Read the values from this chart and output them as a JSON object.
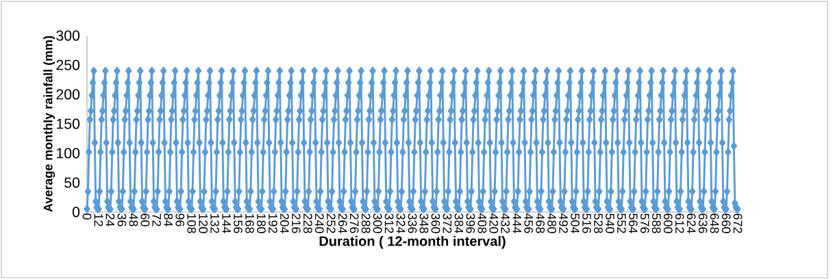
{
  "chart_data": {
    "type": "line",
    "xlabel": "Duration ( 12-month interval)",
    "ylabel": "Average monthly rainfall (mm)",
    "color": "#5b9bd5",
    "marker": "diamond",
    "line_style": "solid",
    "xlim": [
      0,
      672
    ],
    "ylim": [
      0,
      300
    ],
    "yticks": [
      0,
      50,
      100,
      150,
      200,
      250,
      300
    ],
    "xticks": [
      0,
      12,
      24,
      36,
      48,
      60,
      72,
      84,
      96,
      108,
      120,
      132,
      144,
      156,
      168,
      180,
      192,
      204,
      216,
      228,
      240,
      252,
      264,
      276,
      288,
      300,
      312,
      324,
      336,
      348,
      360,
      372,
      384,
      396,
      408,
      420,
      432,
      444,
      456,
      468,
      480,
      492,
      504,
      516,
      528,
      540,
      552,
      564,
      576,
      588,
      600,
      612,
      624,
      636,
      648,
      660,
      672
    ],
    "x": [
      0,
      1,
      2,
      3,
      4,
      5,
      6,
      7,
      8,
      9,
      10,
      11,
      12,
      13,
      14,
      15,
      16,
      17,
      18,
      19,
      20,
      21,
      22,
      23,
      24,
      25,
      26,
      27,
      28,
      29,
      30,
      31,
      32,
      33,
      34,
      35,
      36,
      37,
      38,
      39,
      40,
      41,
      42,
      43,
      44,
      45,
      46,
      47,
      48,
      49,
      50,
      51,
      52,
      53,
      54,
      55,
      56,
      57,
      58,
      59,
      60,
      61,
      62,
      63,
      64,
      65,
      66,
      67,
      68,
      69,
      70,
      71,
      72,
      73,
      74,
      75,
      76,
      77,
      78,
      79,
      80,
      81,
      82,
      83,
      84,
      85,
      86,
      87,
      88,
      89,
      90,
      91,
      92,
      93,
      94,
      95,
      96,
      97,
      98,
      99,
      100,
      101,
      102,
      103,
      104,
      105,
      106,
      107,
      108,
      109,
      110,
      111,
      112,
      113,
      114,
      115,
      116,
      117,
      118,
      119,
      120,
      121,
      122,
      123,
      124,
      125,
      126,
      127,
      128,
      129,
      130,
      131,
      132,
      133,
      134,
      135,
      136,
      137,
      138,
      139,
      140,
      141,
      142,
      143,
      144,
      145,
      146,
      147,
      148,
      149,
      150,
      151,
      152,
      153,
      154,
      155,
      156,
      157,
      158,
      159,
      160,
      161,
      162,
      163,
      164,
      165,
      166,
      167,
      168,
      169,
      170,
      171,
      172,
      173,
      174,
      175,
      176,
      177,
      178,
      179,
      180,
      181,
      182,
      183,
      184,
      185,
      186,
      187,
      188,
      189,
      190,
      191,
      192,
      193,
      194,
      195,
      196,
      197,
      198,
      199,
      200,
      201,
      202,
      203,
      204,
      205,
      206,
      207,
      208,
      209,
      210,
      211,
      212,
      213,
      214,
      215,
      216,
      217,
      218,
      219,
      220,
      221,
      222,
      223,
      224,
      225,
      226,
      227,
      228,
      229,
      230,
      231,
      232,
      233,
      234,
      235,
      236,
      237,
      238,
      239,
      240,
      241,
      242,
      243,
      244,
      245,
      246,
      247,
      248,
      249,
      250,
      251,
      252,
      253,
      254,
      255,
      256,
      257,
      258,
      259,
      260,
      261,
      262,
      263,
      264,
      265,
      266,
      267,
      268,
      269,
      270,
      271,
      272,
      273,
      274,
      275,
      276,
      277,
      278,
      279,
      280,
      281,
      282,
      283,
      284,
      285,
      286,
      287,
      288,
      289,
      290,
      291,
      292,
      293,
      294,
      295,
      296,
      297,
      298,
      299,
      300,
      301,
      302,
      303,
      304,
      305,
      306,
      307,
      308,
      309,
      310,
      311,
      312,
      313,
      314,
      315,
      316,
      317,
      318,
      319,
      320,
      321,
      322,
      323,
      324,
      325,
      326,
      327,
      328,
      329,
      330,
      331,
      332,
      333,
      334,
      335,
      336,
      337,
      338,
      339,
      340,
      341,
      342,
      343,
      344,
      345,
      346,
      347,
      348,
      349,
      350,
      351,
      352,
      353,
      354,
      355,
      356,
      357,
      358,
      359,
      360,
      361,
      362,
      363,
      364,
      365,
      366,
      367,
      368,
      369,
      370,
      371,
      372,
      373,
      374,
      375,
      376,
      377,
      378,
      379,
      380,
      381,
      382,
      383,
      384,
      385,
      386,
      387,
      388,
      389,
      390,
      391,
      392,
      393,
      394,
      395,
      396,
      397,
      398,
      399,
      400,
      401,
      402,
      403,
      404,
      405,
      406,
      407,
      408,
      409,
      410,
      411,
      412,
      413,
      414,
      415,
      416,
      417,
      418,
      419,
      420,
      421,
      422,
      423,
      424,
      425,
      426,
      427,
      428,
      429,
      430,
      431,
      432,
      433,
      434,
      435,
      436,
      437,
      438,
      439,
      440,
      441,
      442,
      443,
      444,
      445,
      446,
      447,
      448,
      449,
      450,
      451,
      452,
      453,
      454,
      455,
      456,
      457,
      458,
      459,
      460,
      461,
      462,
      463,
      464,
      465,
      466,
      467,
      468,
      469,
      470,
      471,
      472,
      473,
      474,
      475,
      476,
      477,
      478,
      479,
      480,
      481,
      482,
      483,
      484,
      485,
      486,
      487,
      488,
      489,
      490,
      491,
      492,
      493,
      494,
      495,
      496,
      497,
      498,
      499,
      500,
      501,
      502,
      503,
      504,
      505,
      506,
      507,
      508,
      509,
      510,
      511,
      512,
      513,
      514,
      515,
      516,
      517,
      518,
      519,
      520,
      521,
      522,
      523,
      524,
      525,
      526,
      527,
      528,
      529,
      530,
      531,
      532,
      533,
      534,
      535,
      536,
      537,
      538,
      539,
      540,
      541,
      542,
      543,
      544,
      545,
      546,
      547,
      548,
      549,
      550,
      551,
      552,
      553,
      554,
      555,
      556,
      557,
      558,
      559,
      560,
      561,
      562,
      563,
      564,
      565,
      566,
      567,
      568,
      569,
      570,
      571,
      572,
      573,
      574,
      575,
      576,
      577,
      578,
      579,
      580,
      581,
      582,
      583,
      584,
      585,
      586,
      587,
      588,
      589,
      590,
      591,
      592,
      593,
      594,
      595,
      596,
      597,
      598,
      599,
      600,
      601,
      602,
      603,
      604,
      605,
      606,
      607,
      608,
      609,
      610,
      611,
      612,
      613,
      614,
      615,
      616,
      617,
      618,
      619,
      620,
      621,
      622,
      623,
      624,
      625,
      626,
      627,
      628,
      629,
      630,
      631,
      632,
      633,
      634,
      635,
      636,
      637,
      638,
      639,
      640,
      641,
      642,
      643,
      644,
      645,
      646,
      647,
      648,
      649,
      650,
      651,
      652,
      653,
      654,
      655,
      656,
      657,
      658,
      659,
      660,
      661,
      662,
      663,
      664,
      665,
      666,
      667,
      668,
      669,
      670,
      671,
      672
    ],
    "values": [
      5,
      35,
      102,
      157,
      172,
      198,
      220,
      240,
      118,
      18,
      8,
      5,
      5,
      35,
      102,
      157,
      172,
      198,
      220,
      240,
      118,
      18,
      8,
      5,
      5,
      35,
      102,
      157,
      172,
      198,
      220,
      240,
      118,
      18,
      8,
      5,
      5,
      35,
      102,
      157,
      172,
      198,
      220,
      240,
      118,
      18,
      8,
      5,
      5,
      35,
      102,
      157,
      172,
      198,
      220,
      240,
      118,
      18,
      8,
      5,
      5,
      35,
      102,
      157,
      172,
      198,
      220,
      240,
      118,
      18,
      8,
      5,
      5,
      35,
      102,
      157,
      172,
      198,
      220,
      240,
      118,
      18,
      8,
      5,
      5,
      35,
      102,
      157,
      172,
      198,
      220,
      240,
      118,
      18,
      8,
      5,
      5,
      35,
      102,
      157,
      172,
      198,
      220,
      240,
      118,
      18,
      8,
      5,
      5,
      35,
      102,
      157,
      172,
      198,
      220,
      240,
      118,
      18,
      8,
      5,
      5,
      35,
      102,
      157,
      172,
      198,
      220,
      240,
      118,
      18,
      8,
      5,
      5,
      35,
      102,
      157,
      172,
      198,
      220,
      240,
      118,
      18,
      8,
      5,
      5,
      35,
      102,
      157,
      172,
      198,
      220,
      240,
      118,
      18,
      8,
      5,
      5,
      35,
      102,
      157,
      172,
      198,
      220,
      240,
      118,
      18,
      8,
      5,
      5,
      35,
      102,
      157,
      172,
      198,
      220,
      240,
      118,
      18,
      8,
      5,
      5,
      35,
      102,
      157,
      172,
      198,
      220,
      240,
      118,
      18,
      8,
      5,
      5,
      35,
      102,
      157,
      172,
      198,
      220,
      240,
      118,
      18,
      8,
      5,
      5,
      35,
      102,
      157,
      172,
      198,
      220,
      240,
      118,
      18,
      8,
      5,
      5,
      35,
      102,
      157,
      172,
      198,
      220,
      240,
      118,
      18,
      8,
      5,
      5,
      35,
      102,
      157,
      172,
      198,
      220,
      240,
      118,
      18,
      8,
      5,
      5,
      35,
      102,
      157,
      172,
      198,
      220,
      240,
      118,
      18,
      8,
      5,
      5,
      35,
      102,
      157,
      172,
      198,
      220,
      240,
      118,
      18,
      8,
      5,
      5,
      35,
      102,
      157,
      172,
      198,
      220,
      240,
      118,
      18,
      8,
      5,
      5,
      35,
      102,
      157,
      172,
      198,
      220,
      240,
      118,
      18,
      8,
      5,
      5,
      35,
      102,
      157,
      172,
      198,
      220,
      240,
      118,
      18,
      8,
      5,
      5,
      35,
      102,
      157,
      172,
      198,
      220,
      240,
      118,
      18,
      8,
      5,
      5,
      35,
      102,
      157,
      172,
      198,
      220,
      240,
      118,
      18,
      8,
      5,
      5,
      35,
      102,
      157,
      172,
      198,
      220,
      240,
      118,
      18,
      8,
      5,
      5,
      35,
      102,
      157,
      172,
      198,
      220,
      240,
      118,
      18,
      8,
      5,
      5,
      35,
      102,
      157,
      172,
      198,
      220,
      240,
      118,
      18,
      8,
      5,
      5,
      35,
      102,
      157,
      172,
      198,
      220,
      240,
      118,
      18,
      8,
      5,
      5,
      35,
      102,
      157,
      172,
      198,
      220,
      240,
      118,
      18,
      8,
      5,
      5,
      35,
      102,
      157,
      172,
      198,
      220,
      240,
      118,
      18,
      8,
      5,
      5,
      35,
      102,
      157,
      172,
      198,
      220,
      240,
      118,
      18,
      8,
      5,
      5,
      35,
      102,
      157,
      172,
      198,
      220,
      240,
      118,
      18,
      8,
      5,
      5,
      35,
      102,
      157,
      172,
      198,
      220,
      240,
      118,
      18,
      8,
      5,
      5,
      35,
      102,
      157,
      172,
      198,
      220,
      240,
      118,
      18,
      8,
      5,
      5,
      35,
      102,
      157,
      172,
      198,
      220,
      240,
      118,
      18,
      8,
      5,
      5,
      35,
      102,
      157,
      172,
      198,
      220,
      240,
      118,
      18,
      8,
      5,
      5,
      35,
      102,
      157,
      172,
      198,
      220,
      240,
      118,
      18,
      8,
      5,
      5,
      35,
      102,
      157,
      172,
      198,
      220,
      240,
      118,
      18,
      8,
      5,
      5,
      35,
      102,
      157,
      172,
      198,
      220,
      240,
      118,
      18,
      8,
      5,
      5,
      35,
      102,
      157,
      172,
      198,
      220,
      240,
      118,
      18,
      8,
      5,
      5,
      35,
      102,
      157,
      172,
      198,
      220,
      240,
      118,
      18,
      8,
      5,
      5,
      35,
      102,
      157,
      172,
      198,
      220,
      240,
      118,
      18,
      8,
      5,
      5,
      35,
      102,
      157,
      172,
      198,
      220,
      240,
      118,
      18,
      8,
      5,
      5,
      35,
      102,
      157,
      172,
      198,
      220,
      240,
      118,
      18,
      8,
      5,
      5,
      35,
      102,
      157,
      172,
      198,
      220,
      240,
      118,
      18,
      8,
      5,
      5,
      35,
      102,
      157,
      172,
      198,
      220,
      240,
      118,
      18,
      8,
      5,
      5,
      35,
      102,
      157,
      172,
      198,
      220,
      240,
      118,
      18,
      8,
      5,
      5,
      35,
      102,
      157,
      172,
      198,
      220,
      240,
      118,
      18,
      8,
      5,
      5,
      35,
      102,
      157,
      172,
      198,
      220,
      240,
      118,
      18,
      8,
      5,
      5,
      35,
      102,
      157,
      172,
      198,
      220,
      240,
      118,
      18,
      8,
      5,
      5,
      35,
      102,
      157,
      172,
      198,
      220,
      240,
      118,
      18,
      8,
      5,
      5,
      35,
      102,
      157,
      172,
      198,
      220,
      240,
      118,
      18,
      8,
      5,
      5,
      35,
      102,
      157,
      172,
      198,
      220,
      240,
      112,
      15,
      8,
      5,
      5
    ]
  }
}
